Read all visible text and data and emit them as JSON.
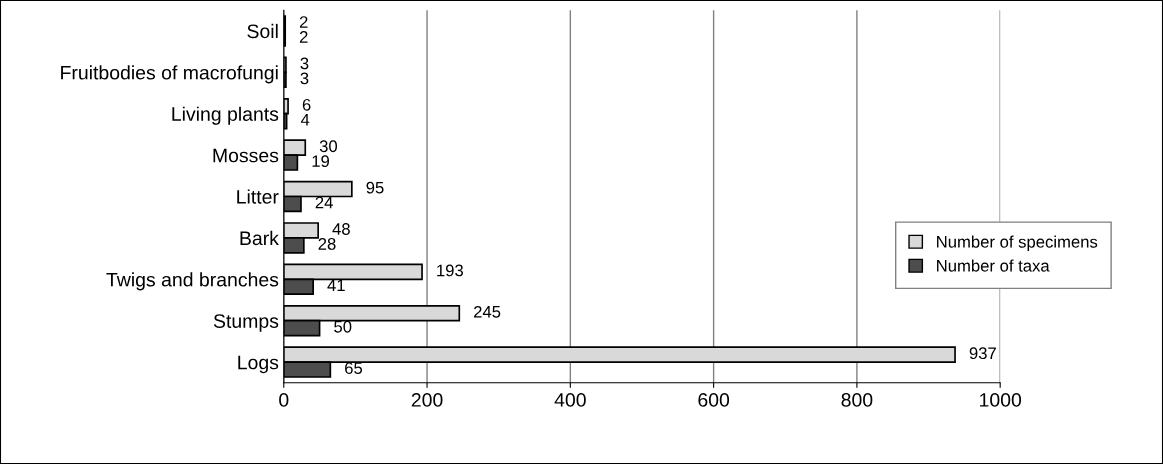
{
  "chart_data": {
    "type": "bar",
    "orientation": "horizontal",
    "categories": [
      "Soil",
      "Fruitbodies of macrofungi",
      "Living plants",
      "Mosses",
      "Litter",
      "Bark",
      "Twigs and branches",
      "Stumps",
      "Logs"
    ],
    "series": [
      {
        "name": "Number of specimens",
        "color": "#d9d9d9",
        "values": [
          2,
          3,
          6,
          30,
          95,
          48,
          193,
          245,
          937
        ]
      },
      {
        "name": "Number of taxa",
        "color": "#4d4d4d",
        "values": [
          2,
          3,
          4,
          19,
          24,
          28,
          41,
          50,
          65
        ]
      }
    ],
    "xlim": [
      0,
      1000
    ],
    "xticks": [
      0,
      200,
      400,
      600,
      800,
      1000
    ],
    "grid": "x",
    "legend": "right",
    "data_labels": true
  }
}
